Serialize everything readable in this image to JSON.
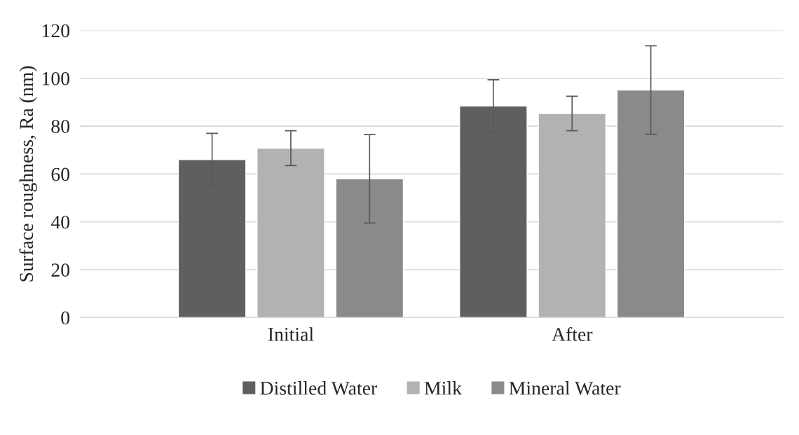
{
  "chart_data": {
    "type": "bar",
    "ylabel": "Surface roughness, Ra (nm)",
    "categories": [
      "Initial",
      "After"
    ],
    "series": [
      {
        "name": "Distilled Water",
        "color": "#5f5f5f",
        "values": [
          66,
          88.4
        ],
        "errors": [
          11,
          11
        ]
      },
      {
        "name": "Milk",
        "color": "#b2b2b2",
        "values": [
          70.8,
          85.3
        ],
        "errors": [
          7.3,
          7.2
        ]
      },
      {
        "name": "Mineral Water",
        "color": "#8a8a8a",
        "values": [
          58,
          95.1
        ],
        "errors": [
          18.5,
          18.5
        ]
      }
    ],
    "ylim": [
      0,
      120
    ],
    "yticks": [
      0,
      20,
      40,
      60,
      80,
      100,
      120
    ],
    "grid": "y",
    "legend": "bottom"
  }
}
